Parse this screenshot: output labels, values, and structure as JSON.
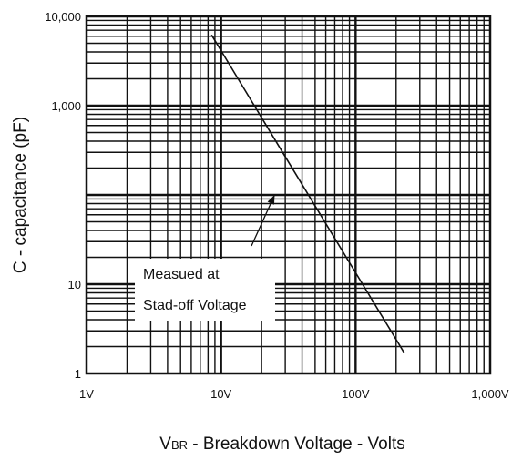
{
  "chart_data": {
    "type": "line",
    "title": "",
    "xlabel": "VBR - Breakdown Voltage - Volts",
    "xlabel_main": "V",
    "xlabel_sub": "BR",
    "xlabel_rest": " - Breakdown Voltage - Volts",
    "ylabel": "C - capacitance (pF)",
    "x_scale": "log",
    "y_scale": "log",
    "xlim": [
      1,
      1000
    ],
    "ylim": [
      1,
      10000
    ],
    "grid": true,
    "legend": "none",
    "x_ticks": [
      {
        "value": 1,
        "label": "1V"
      },
      {
        "value": 10,
        "label": "10V"
      },
      {
        "value": 100,
        "label": "100V"
      },
      {
        "value": 1000,
        "label": "1,000V"
      }
    ],
    "y_ticks": [
      {
        "value": 1,
        "label": "1"
      },
      {
        "value": 10,
        "label": "10"
      },
      {
        "value": 1000,
        "label": "1,000"
      },
      {
        "value": 10000,
        "label": "10,000"
      }
    ],
    "series": [
      {
        "x": [
          8.5,
          22,
          230
        ],
        "y": [
          6200,
          580,
          1.7
        ]
      }
    ],
    "annotations": [
      {
        "lines": [
          "Measued at",
          "Stad-off Voltage"
        ],
        "arrow_to": {
          "x": 25,
          "y": 100
        }
      }
    ]
  }
}
